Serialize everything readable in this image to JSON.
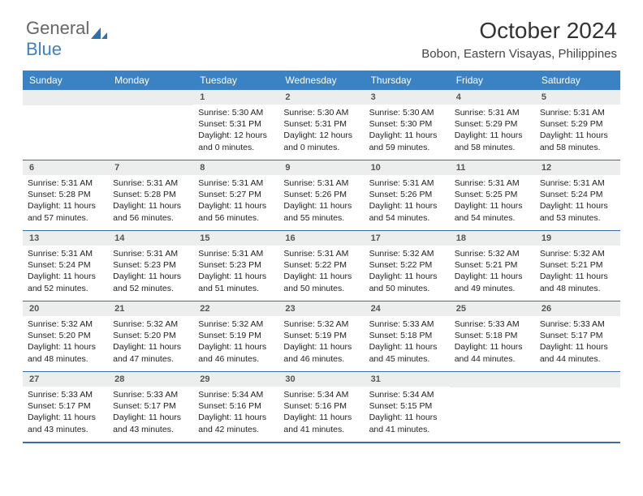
{
  "colors": {
    "header_bg": "#3b82c4",
    "header_text": "#ffffff",
    "daynum_bg": "#eceded",
    "border": "#3b6ea0",
    "text": "#222222",
    "logo_gray": "#666666",
    "logo_blue": "#3b82c4"
  },
  "logo": {
    "word1": "General",
    "word2": "Blue"
  },
  "title": "October 2024",
  "location": "Bobon, Eastern Visayas, Philippines",
  "weekdays": [
    "Sunday",
    "Monday",
    "Tuesday",
    "Wednesday",
    "Thursday",
    "Friday",
    "Saturday"
  ],
  "layout": {
    "type": "calendar-month",
    "columns": 7,
    "rows": 5,
    "first_day_column": 2,
    "body_fontsize": 10.5,
    "daynum_fontsize": 11,
    "header_fontsize": 12
  },
  "weeks": [
    [
      null,
      null,
      {
        "n": "1",
        "sunrise": "Sunrise: 5:30 AM",
        "sunset": "Sunset: 5:31 PM",
        "day": "Daylight: 12 hours and 0 minutes."
      },
      {
        "n": "2",
        "sunrise": "Sunrise: 5:30 AM",
        "sunset": "Sunset: 5:31 PM",
        "day": "Daylight: 12 hours and 0 minutes."
      },
      {
        "n": "3",
        "sunrise": "Sunrise: 5:30 AM",
        "sunset": "Sunset: 5:30 PM",
        "day": "Daylight: 11 hours and 59 minutes."
      },
      {
        "n": "4",
        "sunrise": "Sunrise: 5:31 AM",
        "sunset": "Sunset: 5:29 PM",
        "day": "Daylight: 11 hours and 58 minutes."
      },
      {
        "n": "5",
        "sunrise": "Sunrise: 5:31 AM",
        "sunset": "Sunset: 5:29 PM",
        "day": "Daylight: 11 hours and 58 minutes."
      }
    ],
    [
      {
        "n": "6",
        "sunrise": "Sunrise: 5:31 AM",
        "sunset": "Sunset: 5:28 PM",
        "day": "Daylight: 11 hours and 57 minutes."
      },
      {
        "n": "7",
        "sunrise": "Sunrise: 5:31 AM",
        "sunset": "Sunset: 5:28 PM",
        "day": "Daylight: 11 hours and 56 minutes."
      },
      {
        "n": "8",
        "sunrise": "Sunrise: 5:31 AM",
        "sunset": "Sunset: 5:27 PM",
        "day": "Daylight: 11 hours and 56 minutes."
      },
      {
        "n": "9",
        "sunrise": "Sunrise: 5:31 AM",
        "sunset": "Sunset: 5:26 PM",
        "day": "Daylight: 11 hours and 55 minutes."
      },
      {
        "n": "10",
        "sunrise": "Sunrise: 5:31 AM",
        "sunset": "Sunset: 5:26 PM",
        "day": "Daylight: 11 hours and 54 minutes."
      },
      {
        "n": "11",
        "sunrise": "Sunrise: 5:31 AM",
        "sunset": "Sunset: 5:25 PM",
        "day": "Daylight: 11 hours and 54 minutes."
      },
      {
        "n": "12",
        "sunrise": "Sunrise: 5:31 AM",
        "sunset": "Sunset: 5:24 PM",
        "day": "Daylight: 11 hours and 53 minutes."
      }
    ],
    [
      {
        "n": "13",
        "sunrise": "Sunrise: 5:31 AM",
        "sunset": "Sunset: 5:24 PM",
        "day": "Daylight: 11 hours and 52 minutes."
      },
      {
        "n": "14",
        "sunrise": "Sunrise: 5:31 AM",
        "sunset": "Sunset: 5:23 PM",
        "day": "Daylight: 11 hours and 52 minutes."
      },
      {
        "n": "15",
        "sunrise": "Sunrise: 5:31 AM",
        "sunset": "Sunset: 5:23 PM",
        "day": "Daylight: 11 hours and 51 minutes."
      },
      {
        "n": "16",
        "sunrise": "Sunrise: 5:31 AM",
        "sunset": "Sunset: 5:22 PM",
        "day": "Daylight: 11 hours and 50 minutes."
      },
      {
        "n": "17",
        "sunrise": "Sunrise: 5:32 AM",
        "sunset": "Sunset: 5:22 PM",
        "day": "Daylight: 11 hours and 50 minutes."
      },
      {
        "n": "18",
        "sunrise": "Sunrise: 5:32 AM",
        "sunset": "Sunset: 5:21 PM",
        "day": "Daylight: 11 hours and 49 minutes."
      },
      {
        "n": "19",
        "sunrise": "Sunrise: 5:32 AM",
        "sunset": "Sunset: 5:21 PM",
        "day": "Daylight: 11 hours and 48 minutes."
      }
    ],
    [
      {
        "n": "20",
        "sunrise": "Sunrise: 5:32 AM",
        "sunset": "Sunset: 5:20 PM",
        "day": "Daylight: 11 hours and 48 minutes."
      },
      {
        "n": "21",
        "sunrise": "Sunrise: 5:32 AM",
        "sunset": "Sunset: 5:20 PM",
        "day": "Daylight: 11 hours and 47 minutes."
      },
      {
        "n": "22",
        "sunrise": "Sunrise: 5:32 AM",
        "sunset": "Sunset: 5:19 PM",
        "day": "Daylight: 11 hours and 46 minutes."
      },
      {
        "n": "23",
        "sunrise": "Sunrise: 5:32 AM",
        "sunset": "Sunset: 5:19 PM",
        "day": "Daylight: 11 hours and 46 minutes."
      },
      {
        "n": "24",
        "sunrise": "Sunrise: 5:33 AM",
        "sunset": "Sunset: 5:18 PM",
        "day": "Daylight: 11 hours and 45 minutes."
      },
      {
        "n": "25",
        "sunrise": "Sunrise: 5:33 AM",
        "sunset": "Sunset: 5:18 PM",
        "day": "Daylight: 11 hours and 44 minutes."
      },
      {
        "n": "26",
        "sunrise": "Sunrise: 5:33 AM",
        "sunset": "Sunset: 5:17 PM",
        "day": "Daylight: 11 hours and 44 minutes."
      }
    ],
    [
      {
        "n": "27",
        "sunrise": "Sunrise: 5:33 AM",
        "sunset": "Sunset: 5:17 PM",
        "day": "Daylight: 11 hours and 43 minutes."
      },
      {
        "n": "28",
        "sunrise": "Sunrise: 5:33 AM",
        "sunset": "Sunset: 5:17 PM",
        "day": "Daylight: 11 hours and 43 minutes."
      },
      {
        "n": "29",
        "sunrise": "Sunrise: 5:34 AM",
        "sunset": "Sunset: 5:16 PM",
        "day": "Daylight: 11 hours and 42 minutes."
      },
      {
        "n": "30",
        "sunrise": "Sunrise: 5:34 AM",
        "sunset": "Sunset: 5:16 PM",
        "day": "Daylight: 11 hours and 41 minutes."
      },
      {
        "n": "31",
        "sunrise": "Sunrise: 5:34 AM",
        "sunset": "Sunset: 5:15 PM",
        "day": "Daylight: 11 hours and 41 minutes."
      },
      null,
      null
    ]
  ]
}
